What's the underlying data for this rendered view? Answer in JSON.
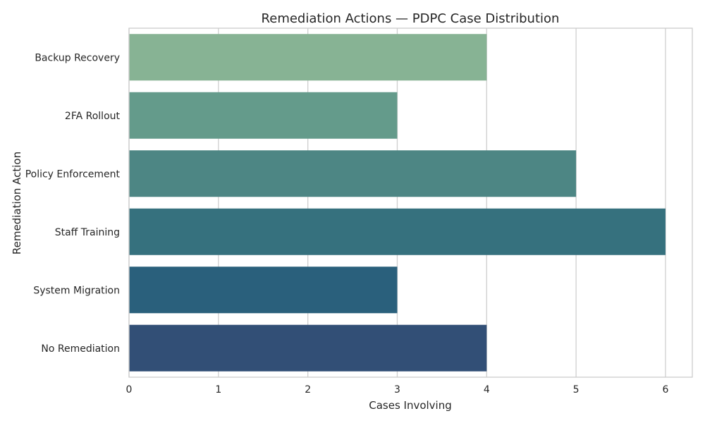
{
  "chart_data": {
    "type": "bar",
    "orientation": "horizontal",
    "title": "Remediation Actions — PDPC Case Distribution",
    "xlabel": "Cases Involving",
    "ylabel": "Remediation Action",
    "categories": [
      "Backup Recovery",
      "2FA Rollout",
      "Policy Enforcement",
      "Staff Training",
      "System Migration",
      "No Remediation"
    ],
    "values": [
      4,
      3,
      5,
      6,
      3,
      4
    ],
    "colors": [
      "#87b394",
      "#649b8b",
      "#4d8684",
      "#36717e",
      "#2a607c",
      "#324f76"
    ],
    "xlim": [
      0,
      6.3
    ],
    "xticks": [
      0,
      1,
      2,
      3,
      4,
      5,
      6
    ],
    "grid": "x-only",
    "legend": "none"
  }
}
